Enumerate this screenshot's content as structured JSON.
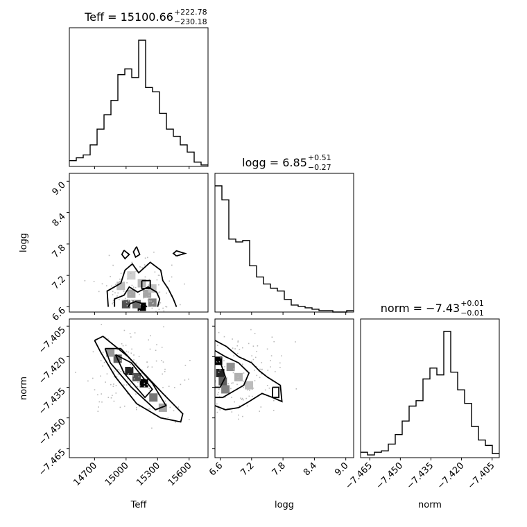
{
  "chart_data": {
    "type": "corner",
    "parameters": [
      {
        "name": "Teff",
        "median": "15100.66",
        "plus": "+222.78",
        "minus": "−230.18",
        "range": [
          14460,
          15780
        ],
        "ticks": [
          {
            "v": 14700,
            "label": "14700"
          },
          {
            "v": 15000,
            "label": "15000"
          },
          {
            "v": 15300,
            "label": "15300"
          },
          {
            "v": 15600,
            "label": "15600"
          }
        ]
      },
      {
        "name": "logg",
        "median": "6.85",
        "plus": "+0.51",
        "minus": "−0.27",
        "range": [
          6.5,
          9.15
        ],
        "ticks": [
          {
            "v": 6.6,
            "label": "6.6"
          },
          {
            "v": 7.2,
            "label": "7.2"
          },
          {
            "v": 7.8,
            "label": "7.8"
          },
          {
            "v": 8.4,
            "label": "8.4"
          },
          {
            "v": 9.0,
            "label": "9.0"
          }
        ]
      },
      {
        "name": "norm",
        "median": "−7.43",
        "plus": "+0.01",
        "minus": "−0.01",
        "range": [
          -7.4695,
          -7.4015
        ],
        "ticks": [
          {
            "v": -7.465,
            "label": "−7.465"
          },
          {
            "v": -7.45,
            "label": "−7.450"
          },
          {
            "v": -7.435,
            "label": "−7.435"
          },
          {
            "v": -7.42,
            "label": "−7.420"
          },
          {
            "v": -7.405,
            "label": "−7.405"
          }
        ]
      }
    ],
    "histograms": [
      {
        "param": "Teff",
        "counts": [
          0.04,
          0.06,
          0.08,
          0.15,
          0.26,
          0.36,
          0.46,
          0.64,
          0.68,
          0.62,
          0.88,
          0.55,
          0.52,
          0.37,
          0.26,
          0.21,
          0.15,
          0.1,
          0.03,
          0.01
        ]
      },
      {
        "param": "logg",
        "counts": [
          0.9,
          0.8,
          0.52,
          0.5,
          0.51,
          0.33,
          0.25,
          0.2,
          0.17,
          0.15,
          0.09,
          0.05,
          0.04,
          0.03,
          0.02,
          0.01,
          0.01,
          0.0,
          0.0,
          0.01
        ]
      },
      {
        "param": "norm",
        "counts": [
          0.04,
          0.02,
          0.04,
          0.05,
          0.1,
          0.17,
          0.27,
          0.38,
          0.42,
          0.58,
          0.66,
          0.61,
          0.93,
          0.63,
          0.5,
          0.4,
          0.23,
          0.13,
          0.09,
          0.03
        ]
      }
    ],
    "pairs": [
      {
        "x": "Teff",
        "y": "logg",
        "contours": [
          [
            [
              14830,
              6.6
            ],
            [
              14820,
              6.9
            ],
            [
              14950,
              7.05
            ],
            [
              14990,
              7.3
            ],
            [
              15060,
              7.42
            ],
            [
              15120,
              7.25
            ],
            [
              15230,
              7.45
            ],
            [
              15330,
              7.3
            ],
            [
              15350,
              7.1
            ],
            [
              15400,
              6.95
            ],
            [
              15450,
              6.75
            ],
            [
              15480,
              6.6
            ]
          ],
          [
            [
              14890,
              6.6
            ],
            [
              14890,
              6.75
            ],
            [
              14980,
              6.82
            ],
            [
              15030,
              6.98
            ],
            [
              15110,
              6.88
            ],
            [
              15210,
              6.98
            ],
            [
              15290,
              6.88
            ],
            [
              15320,
              6.75
            ],
            [
              15300,
              6.6
            ]
          ],
          [
            [
              15020,
              6.6
            ],
            [
              15040,
              6.66
            ],
            [
              15090,
              6.7
            ],
            [
              15160,
              6.66
            ],
            [
              15200,
              6.6
            ]
          ],
          [
            [
              15480,
              7.57
            ],
            [
              15560,
              7.62
            ],
            [
              15480,
              7.67
            ],
            [
              15450,
              7.62
            ],
            [
              15480,
              7.57
            ]
          ],
          [
            [
              15150,
              7.1
            ],
            [
              15230,
              7.1
            ],
            [
              15230,
              6.95
            ],
            [
              15150,
              6.95
            ],
            [
              15150,
              7.1
            ]
          ],
          [
            [
              14980,
              7.68
            ],
            [
              15030,
              7.6
            ],
            [
              14990,
              7.52
            ],
            [
              14960,
              7.6
            ],
            [
              14980,
              7.68
            ]
          ],
          [
            [
              15100,
              7.75
            ],
            [
              15130,
              7.6
            ],
            [
              15090,
              7.55
            ],
            [
              15070,
              7.65
            ],
            [
              15100,
              7.75
            ]
          ]
        ],
        "density": [
          [
            15150,
            6.6,
            1.0
          ],
          [
            15000,
            6.65,
            0.65
          ],
          [
            15100,
            6.65,
            0.55
          ],
          [
            15250,
            6.68,
            0.45
          ],
          [
            15050,
            6.85,
            0.3
          ],
          [
            15200,
            6.85,
            0.3
          ],
          [
            14950,
            7.0,
            0.2
          ],
          [
            15150,
            7.05,
            0.22
          ],
          [
            15250,
            6.95,
            0.18
          ],
          [
            15050,
            7.2,
            0.12
          ]
        ],
        "density_center": [
          15110,
          6.78
        ],
        "density_spread": [
          190,
          0.35
        ]
      },
      {
        "x": "Teff",
        "y": "norm",
        "contours": [
          [
            [
              14700,
              -7.412
            ],
            [
              14780,
              -7.41
            ],
            [
              15020,
              -7.42
            ],
            [
              15350,
              -7.438
            ],
            [
              15540,
              -7.448
            ],
            [
              15520,
              -7.452
            ],
            [
              15330,
              -7.45
            ],
            [
              15100,
              -7.443
            ],
            [
              14900,
              -7.43
            ],
            [
              14760,
              -7.418
            ],
            [
              14700,
              -7.412
            ]
          ],
          [
            [
              14800,
              -7.416
            ],
            [
              14950,
              -7.416
            ],
            [
              15250,
              -7.433
            ],
            [
              15380,
              -7.444
            ],
            [
              15280,
              -7.446
            ],
            [
              15050,
              -7.435
            ],
            [
              14850,
              -7.423
            ],
            [
              14800,
              -7.416
            ]
          ],
          [
            [
              14900,
              -7.419
            ],
            [
              15050,
              -7.423
            ],
            [
              15250,
              -7.436
            ],
            [
              15180,
              -7.44
            ],
            [
              14980,
              -7.428
            ],
            [
              14900,
              -7.419
            ]
          ]
        ],
        "density": [
          [
            15170,
            -7.433,
            1.0
          ],
          [
            15030,
            -7.427,
            0.85
          ],
          [
            14920,
            -7.421,
            0.6
          ],
          [
            15260,
            -7.44,
            0.5
          ],
          [
            15100,
            -7.43,
            0.65
          ],
          [
            14850,
            -7.418,
            0.35
          ],
          [
            15350,
            -7.445,
            0.3
          ]
        ],
        "density_center": [
          15100,
          -7.43
        ],
        "density_spread": [
          230,
          0.01
        ]
      },
      {
        "x": "logg",
        "y": "norm",
        "contours": [
          [
            [
              6.5,
              -7.412
            ],
            [
              6.72,
              -7.415
            ],
            [
              6.95,
              -7.42
            ],
            [
              7.2,
              -7.423
            ],
            [
              7.35,
              -7.427
            ],
            [
              7.5,
              -7.43
            ],
            [
              7.75,
              -7.434
            ],
            [
              7.78,
              -7.442
            ],
            [
              7.6,
              -7.44
            ],
            [
              7.4,
              -7.438
            ],
            [
              7.15,
              -7.442
            ],
            [
              6.95,
              -7.445
            ],
            [
              6.7,
              -7.446
            ],
            [
              6.5,
              -7.444
            ]
          ],
          [
            [
              6.5,
              -7.417
            ],
            [
              6.7,
              -7.42
            ],
            [
              6.95,
              -7.423
            ],
            [
              7.15,
              -7.428
            ],
            [
              7.05,
              -7.434
            ],
            [
              6.85,
              -7.437
            ],
            [
              6.65,
              -7.44
            ],
            [
              6.5,
              -7.44
            ]
          ],
          [
            [
              6.5,
              -7.421
            ],
            [
              6.62,
              -7.424
            ],
            [
              6.7,
              -7.43
            ],
            [
              6.6,
              -7.435
            ],
            [
              6.5,
              -7.435
            ]
          ],
          [
            [
              7.6,
              -7.435
            ],
            [
              7.72,
              -7.435
            ],
            [
              7.72,
              -7.44
            ],
            [
              7.6,
              -7.44
            ],
            [
              7.6,
              -7.435
            ]
          ]
        ],
        "density": [
          [
            6.56,
            -7.422,
            1.0
          ],
          [
            6.6,
            -7.428,
            0.85
          ],
          [
            6.65,
            -7.432,
            0.6
          ],
          [
            6.8,
            -7.425,
            0.4
          ],
          [
            6.7,
            -7.436,
            0.45
          ],
          [
            6.95,
            -7.43,
            0.25
          ],
          [
            7.15,
            -7.434,
            0.2
          ]
        ],
        "density_center": [
          6.9,
          -7.43
        ],
        "density_spread": [
          0.45,
          0.011
        ]
      }
    ]
  }
}
